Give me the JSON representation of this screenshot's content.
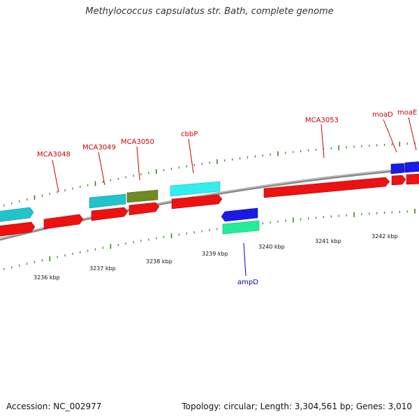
{
  "title": "Methylococcus capsulatus str. Bath, complete genome",
  "footer": {
    "accession": "Accession: NC_002977",
    "summary": "Topology: circular; Length: 3,304,561 bp; Genes: 3,010"
  },
  "colors": {
    "backbone": "#8a8a8a",
    "tick": "#2e7d1a",
    "gene_red": "#ee1111",
    "gene_cyan": "#22c4cc",
    "gene_light_cyan": "#33eef0",
    "gene_olive": "#6f8a22",
    "gene_blue": "#1a1ae6",
    "gene_mint": "#22ee99",
    "label_red": "#cc0000",
    "label_blue": "#0000cc"
  },
  "scale": {
    "ticks": [
      {
        "label": "3236 kbp"
      },
      {
        "label": "3237 kbp"
      },
      {
        "label": "3238 kbp"
      },
      {
        "label": "3239 kbp"
      },
      {
        "label": "3240 kbp"
      },
      {
        "label": "3241 kbp"
      },
      {
        "label": "3242 kbp"
      }
    ]
  },
  "labels": {
    "mca3048": "MCA3048",
    "mca3049": "MCA3049",
    "mca3050": "MCA3050",
    "cbbp": "cbbP",
    "mca3053": "MCA3053",
    "moad": "moaD",
    "moae": "moaE",
    "ampd": "ampD"
  }
}
